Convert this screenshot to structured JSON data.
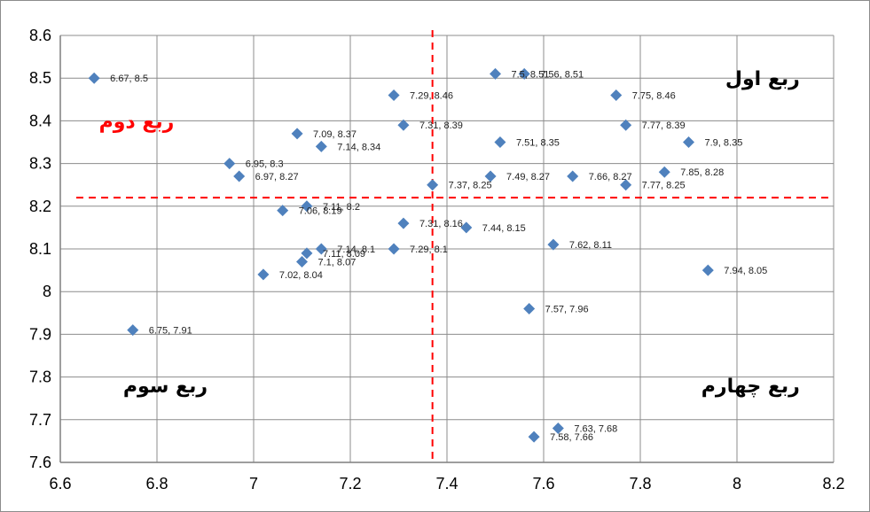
{
  "chart_data": {
    "type": "scatter",
    "title": "",
    "xlabel": "",
    "ylabel": "",
    "xlim": [
      6.6,
      8.2
    ],
    "ylim": [
      7.6,
      8.6
    ],
    "x_ticks": [
      "6.6",
      "6.8",
      "7",
      "7.2",
      "7.4",
      "7.6",
      "7.8",
      "8",
      "8.2"
    ],
    "y_ticks": [
      "7.6",
      "7.7",
      "7.8",
      "7.9",
      "8",
      "8.1",
      "8.2",
      "8.3",
      "8.4",
      "8.5",
      "8.6"
    ],
    "grid": true,
    "legend": "none",
    "marker_color": "#4f81bd",
    "reference_line_color": "#ff0000",
    "reference_lines": {
      "x": 7.37,
      "y": 8.22
    },
    "quadrant_labels": [
      {
        "text": "ربع اول",
        "color": "#000000"
      },
      {
        "text": "ربع دوم",
        "color": "#ff0000"
      },
      {
        "text": "ربع سوم",
        "color": "#000000"
      },
      {
        "text": "ربع چهارم",
        "color": "#000000"
      }
    ],
    "points": [
      {
        "x": 6.67,
        "y": 8.5,
        "label": "6.67, 8.5"
      },
      {
        "x": 7.5,
        "y": 8.51,
        "label": "7.5, 8.51"
      },
      {
        "x": 7.56,
        "y": 8.51,
        "label": "7.56, 8.51"
      },
      {
        "x": 7.29,
        "y": 8.46,
        "label": "7.29, 8.46"
      },
      {
        "x": 7.75,
        "y": 8.46,
        "label": "7.75, 8.46"
      },
      {
        "x": 7.14,
        "y": 8.34,
        "label": "7.14, 8.34"
      },
      {
        "x": 7.31,
        "y": 8.39,
        "label": "7.31, 8.39"
      },
      {
        "x": 7.77,
        "y": 8.39,
        "label": "7.77, 8.39"
      },
      {
        "x": 7.09,
        "y": 8.37,
        "label": "7.09, 8.37"
      },
      {
        "x": 7.51,
        "y": 8.35,
        "label": "7.51, 8.35"
      },
      {
        "x": 7.9,
        "y": 8.35,
        "label": "7.9, 8.35"
      },
      {
        "x": 6.95,
        "y": 8.3,
        "label": "6.95, 8.3"
      },
      {
        "x": 6.97,
        "y": 8.27,
        "label": "6.97, 8.27"
      },
      {
        "x": 7.49,
        "y": 8.27,
        "label": "7.49, 8.27"
      },
      {
        "x": 7.66,
        "y": 8.27,
        "label": "7.66, 8.27"
      },
      {
        "x": 7.85,
        "y": 8.28,
        "label": "7.85, 8.28"
      },
      {
        "x": 7.37,
        "y": 8.25,
        "label": "7.37, 8.25"
      },
      {
        "x": 7.77,
        "y": 8.25,
        "label": "7.77, 8.25"
      },
      {
        "x": 7.11,
        "y": 8.2,
        "label": "7.11, 8.2"
      },
      {
        "x": 7.06,
        "y": 8.19,
        "label": "7.06, 8.19"
      },
      {
        "x": 7.31,
        "y": 8.16,
        "label": "7.31, 8.16"
      },
      {
        "x": 7.44,
        "y": 8.15,
        "label": "7.44, 8.15"
      },
      {
        "x": 7.14,
        "y": 8.1,
        "label": "7.14, 8.1"
      },
      {
        "x": 7.11,
        "y": 8.09,
        "label": "7.11, 8.09"
      },
      {
        "x": 7.1,
        "y": 8.07,
        "label": "7.1, 8.07"
      },
      {
        "x": 7.29,
        "y": 8.1,
        "label": "7.29, 8.1"
      },
      {
        "x": 7.62,
        "y": 8.11,
        "label": "7.62, 8.11"
      },
      {
        "x": 7.02,
        "y": 8.04,
        "label": "7.02, 8.04"
      },
      {
        "x": 7.94,
        "y": 8.05,
        "label": "7.94, 8.05"
      },
      {
        "x": 7.57,
        "y": 7.96,
        "label": "7.57, 7.96"
      },
      {
        "x": 6.75,
        "y": 7.91,
        "label": "6.75, 7.91"
      },
      {
        "x": 7.63,
        "y": 7.68,
        "label": "7.63, 7.68"
      },
      {
        "x": 7.58,
        "y": 7.66,
        "label": "7.58, 7.66"
      }
    ]
  }
}
